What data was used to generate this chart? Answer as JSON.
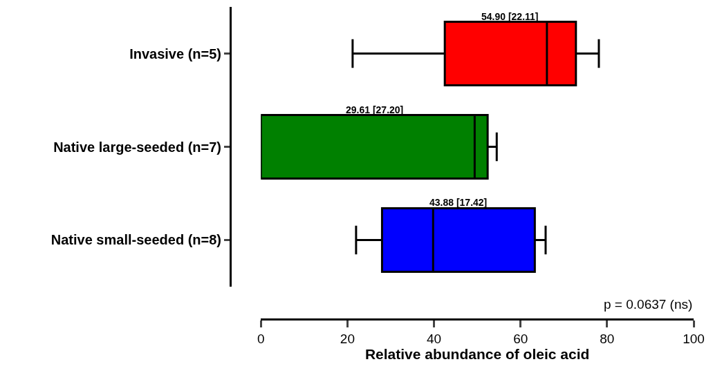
{
  "chart_data": {
    "type": "box",
    "orientation": "horizontal",
    "xlabel": "Relative abundance of oleic acid",
    "categories": [
      "Invasive (n=5)",
      "Native large-seeded (n=7)",
      "Native small-seeded (n=8)"
    ],
    "colors": [
      "#ff0000",
      "#008000",
      "#0000ff"
    ],
    "boxes": [
      {
        "low": 21.2,
        "q1": 42.5,
        "median": 66.1,
        "q3": 72.8,
        "high": 78.1
      },
      {
        "low": 0,
        "q1": 0,
        "median": 49.4,
        "q3": 52.4,
        "high": 54.5
      },
      {
        "low": 22,
        "q1": 28,
        "median": 39.8,
        "q3": 63.3,
        "high": 65.8
      }
    ],
    "xlim": [
      0,
      100
    ],
    "xticks": [
      0,
      20,
      40,
      60,
      80,
      100
    ],
    "annotations": [
      "54.90 [22.11]",
      "29.61 [27.20]",
      "43.88 [17.42]",
      "p = 0.0637 (ns)"
    ],
    "grid": false,
    "legend": false
  }
}
